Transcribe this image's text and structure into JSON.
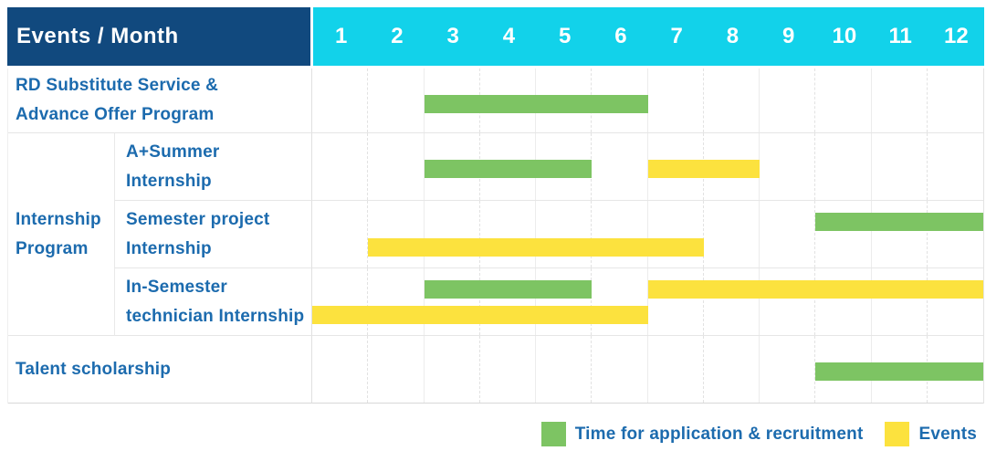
{
  "header": {
    "title": "Events / Month",
    "months": [
      "1",
      "2",
      "3",
      "4",
      "5",
      "6",
      "7",
      "8",
      "9",
      "10",
      "11",
      "12"
    ]
  },
  "group": {
    "line1": "Internship",
    "line2": "Program"
  },
  "rows": [
    {
      "line1": "RD Substitute Service &",
      "line2": "Advance Offer Program"
    },
    {
      "line1": "A+Summer",
      "line2": "Internship"
    },
    {
      "line1": "Semester project",
      "line2": "Internship"
    },
    {
      "line1": "In-Semester",
      "line2": "technician Internship"
    },
    {
      "line1": "Talent scholarship"
    }
  ],
  "legend": {
    "recruitment": {
      "label": "Time for application & recruitment",
      "color": "#7DC463"
    },
    "events": {
      "label": "Events",
      "color": "#FCE23E"
    }
  },
  "colors": {
    "header_bg": "#11497E",
    "months_bg": "#12D2EA",
    "label_text": "#1C6BAE",
    "recruitment_bar": "#7DC463",
    "events_bar": "#FCE23E",
    "grid_line": "#ECECEC"
  },
  "chart_data": {
    "type": "gantt",
    "title": "Events / Month",
    "x": {
      "unit": "month",
      "ticks": [
        1,
        2,
        3,
        4,
        5,
        6,
        7,
        8,
        9,
        10,
        11,
        12
      ],
      "range": [
        1,
        12
      ]
    },
    "legend": [
      {
        "name": "Time for application & recruitment",
        "color": "#7DC463"
      },
      {
        "name": "Events",
        "color": "#FCE23E"
      }
    ],
    "tasks": [
      {
        "row": "RD Substitute Service & Advance Offer Program",
        "group": null,
        "segments": [
          {
            "series": "Time for application & recruitment",
            "kind": "recruitment",
            "start_month": 3,
            "end_month": 6,
            "track": 0
          }
        ]
      },
      {
        "row": "A+Summer Internship",
        "group": "Internship Program",
        "segments": [
          {
            "series": "Time for application & recruitment",
            "kind": "recruitment",
            "start_month": 3,
            "end_month": 5,
            "track": 0
          },
          {
            "series": "Events",
            "kind": "events",
            "start_month": 7,
            "end_month": 8,
            "track": 0
          }
        ]
      },
      {
        "row": "Semester project Internship",
        "group": "Internship Program",
        "segments": [
          {
            "series": "Time for application & recruitment",
            "kind": "recruitment",
            "start_month": 10,
            "end_month": 12,
            "track": 0
          },
          {
            "series": "Events",
            "kind": "events",
            "start_month": 2,
            "end_month": 7,
            "track": 1
          }
        ]
      },
      {
        "row": "In-Semester technician Internship",
        "group": "Internship Program",
        "segments": [
          {
            "series": "Time for application & recruitment",
            "kind": "recruitment",
            "start_month": 3,
            "end_month": 5,
            "track": 0
          },
          {
            "series": "Events",
            "kind": "events",
            "start_month": 7,
            "end_month": 12,
            "track": 0
          },
          {
            "series": "Events",
            "kind": "events",
            "start_month": 1,
            "end_month": 6,
            "track": 1
          }
        ]
      },
      {
        "row": "Talent scholarship",
        "group": null,
        "segments": [
          {
            "series": "Time for application & recruitment",
            "kind": "recruitment",
            "start_month": 10,
            "end_month": 12,
            "track": 0
          }
        ]
      }
    ]
  }
}
